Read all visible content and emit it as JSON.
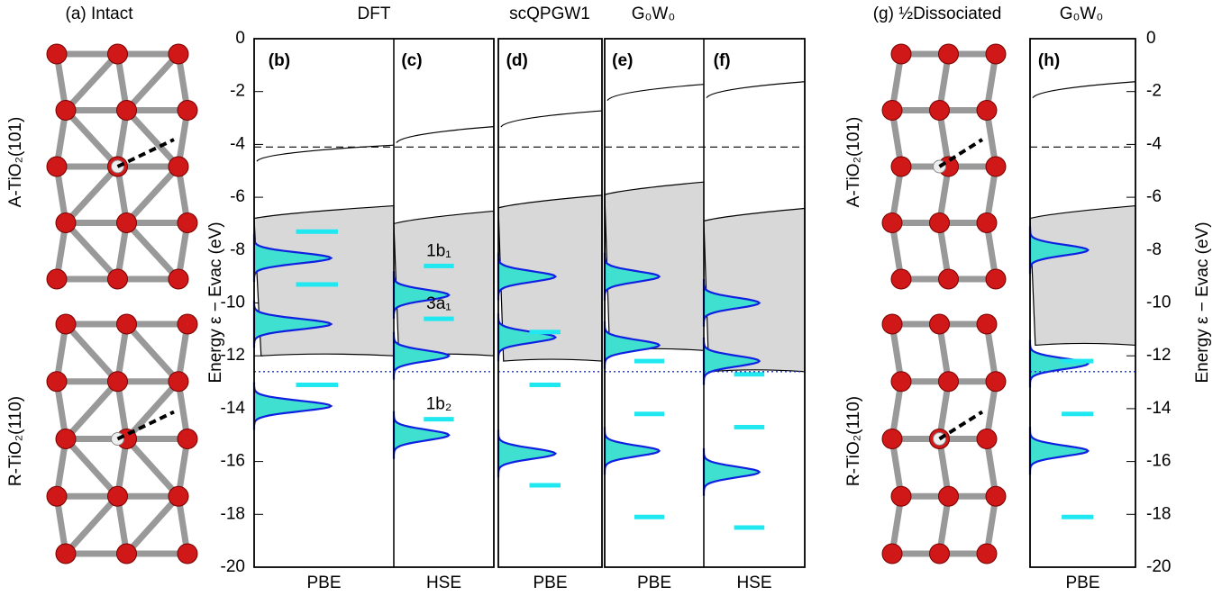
{
  "structures": {
    "intact_label": "(a) Intact",
    "dissociated_label": "(g) ½Dissociated",
    "anatase": "A-TiO₂(101)",
    "rutile": "R-TiO₂(110)"
  },
  "chart_data": {
    "type": "dos",
    "ylabel": "Energy ε − Evac (eV)",
    "ylim": [
      -20,
      0
    ],
    "yticks": [
      0,
      -2,
      -4,
      -6,
      -8,
      -10,
      -12,
      -14,
      -16,
      -18,
      -20
    ],
    "vacuum_line": -4.1,
    "reference_line": -12.6,
    "headers": [
      "DFT",
      "scQPGW1",
      "G₀W₀",
      "G₀W₀"
    ],
    "level_labels": [
      "1b₁",
      "3a₁",
      "1b₂"
    ],
    "panels": [
      {
        "label": "(b)",
        "xlabel": "PBE",
        "cbm": -4.3,
        "vbm": -6.8,
        "vb_bottom": -12.0,
        "peaks": [
          -8.3,
          -10.8,
          -13.9
        ],
        "levels": [
          -7.3,
          -9.3,
          -13.1
        ]
      },
      {
        "label": "(c)",
        "xlabel": "HSE",
        "cbm": -3.6,
        "vbm": -7.0,
        "vb_bottom": -12.0,
        "peaks": [
          -9.7,
          -12.0,
          -15.0
        ],
        "levels": [
          -8.6,
          -10.6,
          -14.4
        ]
      },
      {
        "label": "(d)",
        "xlabel": "PBE",
        "cbm": -3.0,
        "vbm": -6.4,
        "vb_bottom": -12.2,
        "peaks": [
          -9.0,
          -11.3,
          -15.7
        ],
        "levels": [
          -11.1,
          -13.1,
          -16.9
        ]
      },
      {
        "label": "(e)",
        "xlabel": "PBE",
        "cbm": -2.0,
        "vbm": -5.9,
        "vb_bottom": -11.8,
        "peaks": [
          -9.0,
          -11.6,
          -15.6
        ],
        "levels": [
          -12.2,
          -14.2,
          -18.1
        ]
      },
      {
        "label": "(f)",
        "xlabel": "HSE",
        "cbm": -1.9,
        "vbm": -6.9,
        "vb_bottom": -12.6,
        "peaks": [
          -10.0,
          -12.2,
          -16.4
        ],
        "levels": [
          -12.7,
          -14.7,
          -18.5
        ]
      },
      {
        "label": "(h)",
        "xlabel": "PBE",
        "cbm": -1.9,
        "vbm": -6.8,
        "vb_bottom": -11.6,
        "peaks": [
          -8.0,
          -12.3,
          -15.6
        ],
        "levels": [
          -12.2,
          -14.2,
          -18.1
        ]
      }
    ]
  }
}
